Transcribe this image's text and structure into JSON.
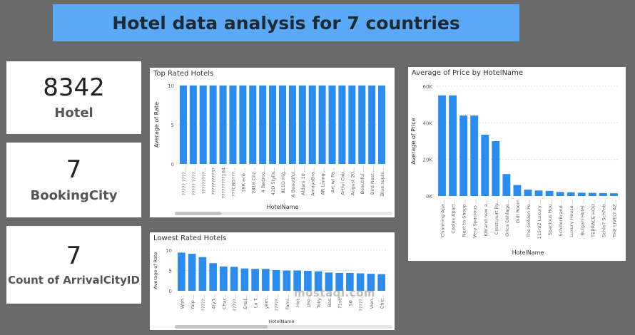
{
  "header": {
    "title": "Hotel data analysis for 7 countries"
  },
  "cards": [
    {
      "value": "8342",
      "label": "Hotel"
    },
    {
      "value": "7",
      "label": "BookingCity"
    },
    {
      "value": "7",
      "label": "Count of ArrivalCityID"
    }
  ],
  "watermark": "mostaql.com",
  "colors": {
    "bar": "#2b8cf0",
    "title_bg": "#5aa9f7",
    "background": "#6a6a6a"
  },
  "chart_data": [
    {
      "type": "bar",
      "title": "Top Rated Hotels",
      "xlabel": "HotelName",
      "ylabel": "Average of Rate",
      "ylim": [
        0,
        10
      ],
      "yticks": [
        "0",
        "5",
        "10"
      ],
      "categories": [
        "????? ????...",
        "????? ????...",
        "?????????...",
        "?????????3?",
        "?????????104",
        "???CBD???...",
        "1BR eco ...",
        "2818 Coz...",
        "4 Bedroo...",
        "42D Stylis...",
        "811D Hig...",
        "A Beautiful...",
        "Aldars 10 ...",
        "AmayaBra...",
        "AR Living ...",
        "Art w/ Pa...",
        "Artful Cab...",
        "August 20...",
        "Beautiful ...",
        "Bird Nest ...",
        "Blue sophi..."
      ],
      "values": [
        10,
        10,
        10,
        10,
        10,
        10,
        10,
        10,
        10,
        10,
        10,
        10,
        10,
        10,
        10,
        10,
        10,
        10,
        10,
        10,
        10
      ],
      "grid": true
    },
    {
      "type": "bar",
      "title": "Lowest Rated Hotels",
      "xlabel": "HotelName",
      "ylabel": "Average of Rate",
      "ylim": [
        0,
        10
      ],
      "yticks": [
        "0",
        "5",
        "10"
      ],
      "categories": [
        "Woh...",
        "Yalp ...",
        "?????...",
        "4ty3...",
        "Char...",
        "?????...",
        "Ered...",
        "La T...",
        "yem...",
        "?????...",
        "Fami...",
        "Hot...",
        "pso...",
        "Toky...",
        "Bas...",
        "?1st...",
        "50 ...",
        "?????...",
        "Vien...",
        "Chic..."
      ],
      "values": [
        9.4,
        9.1,
        8.3,
        6.8,
        6.0,
        5.9,
        5.5,
        5.4,
        5.4,
        5.1,
        5.0,
        5.0,
        4.9,
        4.8,
        4.5,
        4.4,
        4.4,
        4.3,
        4.2,
        4.1
      ],
      "grid": true
    },
    {
      "type": "bar",
      "title": "Average of Price by HotelName",
      "xlabel": "HotelName",
      "ylabel": "Average of Price",
      "ylim": [
        0,
        60000
      ],
      "yticks": [
        "0K",
        "20K",
        "40K",
        "60K"
      ],
      "categories": [
        "Charming Apa...",
        "Cooles Apart...",
        "Next to Shopp...",
        "Very Spacious ...",
        "KBrand new a...",
        "Crestcourt Ry...",
        "Orica Oshlage...",
        "Didi Room",
        "The Golden Pe...",
        "115m2 Luxury ...",
        "Spacious Hou...",
        "SchillerBrand ...",
        "Luxury House ...",
        "Bulgari Hotel ...",
        "TERRACE HOU...",
        "Schlo? Sch?nb...",
        "THE LIVELY AZ..."
      ],
      "values": [
        55000,
        55000,
        44000,
        44000,
        33500,
        30000,
        12000,
        6000,
        3500,
        3000,
        2800,
        2200,
        2000,
        1800,
        1700,
        1600,
        1500
      ],
      "grid": true
    }
  ]
}
